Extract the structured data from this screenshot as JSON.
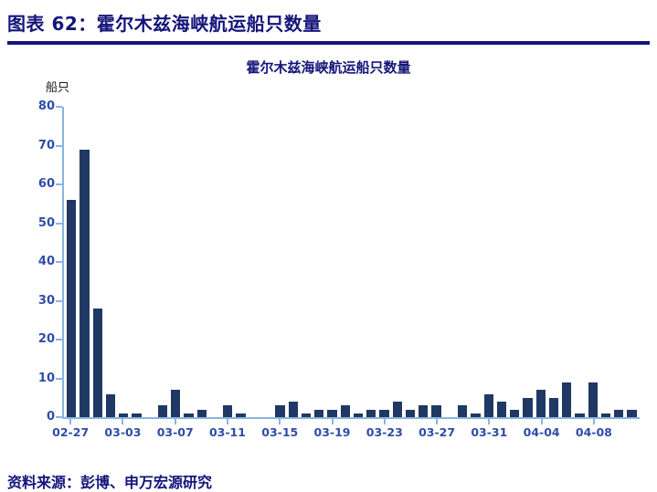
{
  "page": {
    "header_title": "图表 62：霍尔木兹海峡航运船只数量",
    "source": "资料来源：彭博、申万宏源研究"
  },
  "colors": {
    "title": "#14157a",
    "bar": "#1f3864",
    "axis": "#8ab4df",
    "tick_labels": "#2f4da8"
  },
  "chart_data": {
    "type": "bar",
    "title": "霍尔木兹海峡航运船只数量",
    "xlabel": "",
    "ylabel": "船只",
    "ylim": [
      0,
      80
    ],
    "ytick_step": 10,
    "grid": false,
    "legend": false,
    "categories": [
      "02-27",
      "02-28",
      "03-01",
      "03-02",
      "03-03",
      "03-04",
      "03-05",
      "03-06",
      "03-07",
      "03-08",
      "03-09",
      "03-10",
      "03-11",
      "03-12",
      "03-13",
      "03-14",
      "03-15",
      "03-16",
      "03-17",
      "03-18",
      "03-19",
      "03-20",
      "03-21",
      "03-22",
      "03-23",
      "03-24",
      "03-25",
      "03-26",
      "03-27",
      "03-28",
      "03-29",
      "03-30",
      "03-31",
      "04-01",
      "04-02",
      "04-03",
      "04-04",
      "04-05",
      "04-06",
      "04-07",
      "04-08",
      "04-09",
      "04-10",
      "04-11"
    ],
    "values": [
      56,
      69,
      28,
      6,
      1,
      1,
      0,
      3,
      7,
      1,
      2,
      0,
      3,
      1,
      0,
      0,
      3,
      4,
      1,
      2,
      2,
      3,
      1,
      2,
      2,
      4,
      2,
      3,
      3,
      0,
      3,
      1,
      6,
      4,
      2,
      5,
      7,
      5,
      9,
      1,
      9,
      1,
      2,
      2
    ],
    "xtick_labels": [
      "02-27",
      "03-03",
      "03-07",
      "03-11",
      "03-15",
      "03-19",
      "03-23",
      "03-27",
      "03-31",
      "04-04",
      "04-08"
    ],
    "xtick_interval": 4
  }
}
